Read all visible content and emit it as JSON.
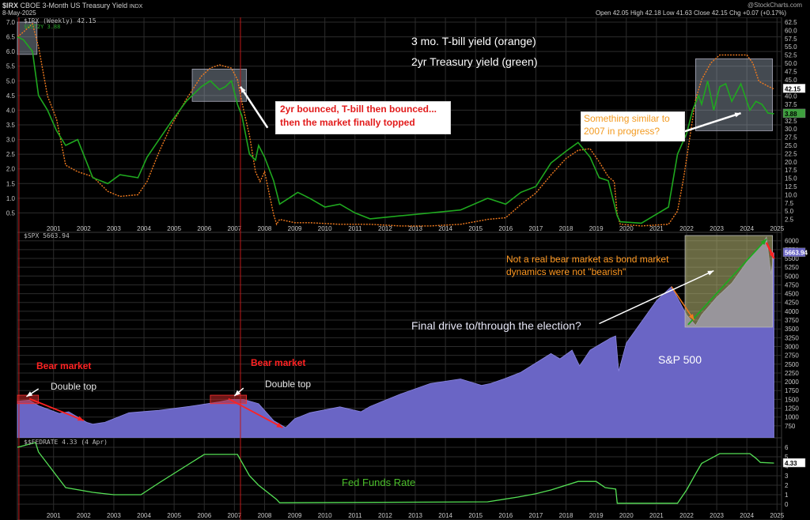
{
  "header": {
    "symbol": "$IRX",
    "title": "CBOE 3-Month US Treasury Yield",
    "exchange": "INDX",
    "date": "8-May-2025",
    "watermark": "@StockCharts.com",
    "ohlc": "Open 42.05  High 42.18  Low 41.63  Close 42.15  Chg +0.07 (+0.17%)"
  },
  "legends": {
    "top": "$IRX (Weekly) 42.15",
    "top2": "$UST2Y 3.88",
    "middle": "$SPX 5663.94",
    "bottom": "$$FEDRATE 4.33 (4 Apr)"
  },
  "annotations": {
    "tbill": "3 mo. T-bill yield (orange)",
    "twoyr": "2yr Treasury yield (green)",
    "bounce_1": "2yr bounced, T-bill then bounced...",
    "bounce_2": "then the market finally topped",
    "similar_1": "Something similar to",
    "similar_2": "2007 in progress?",
    "notbear_1": "Not a real bear market as bond market",
    "notbear_2": "dynamics were not \"bearish\"",
    "finaldrive": "Final drive to/through the election?",
    "sp500": "S&P 500",
    "bear1": "Bear market",
    "bear2": "Bear market",
    "dt1": "Double top",
    "dt2": "Double top",
    "fedfunds": "Fed Funds Rate"
  },
  "colors": {
    "orange": "#f07a1e",
    "green": "#1fa81f",
    "spx_fill": "#6a65c5",
    "fed_line": "#55e055",
    "red": "#ff2222",
    "ann_orange": "#ff9922",
    "ann_green": "#4cbf2c"
  },
  "chart_data": [
    {
      "type": "line",
      "title": "$IRX (Weekly)",
      "x_ticks": [
        "2001",
        "2002",
        "2003",
        "2004",
        "2005",
        "2006",
        "2007",
        "2008",
        "2009",
        "2010",
        "2011",
        "2012",
        "2013",
        "2014",
        "2015",
        "2016",
        "2017",
        "2018",
        "2019",
        "2020",
        "2021",
        "2022",
        "2023",
        "2024",
        "2025"
      ],
      "xlim": [
        2000.3,
        2025.65
      ],
      "left_axis_ticks": [
        "0.5",
        "1.0",
        "1.5",
        "2.0",
        "2.5",
        "3.0",
        "3.5",
        "4.0",
        "4.5",
        "5.0",
        "5.5",
        "6.0",
        "6.5",
        "7.0"
      ],
      "right_axis_ticks": [
        "2.5",
        "5.0",
        "7.5",
        "10.0",
        "12.5",
        "15.0",
        "17.5",
        "20.0",
        "22.5",
        "25.0",
        "27.5",
        "30.0",
        "32.5",
        "35.0",
        "37.5",
        "40.0",
        "42.5",
        "45.0",
        "47.5",
        "50.0",
        "52.5",
        "55.0",
        "57.5",
        "60.0",
        "62.5"
      ],
      "ylim_left": [
        0,
        7
      ],
      "ylim_right": [
        0,
        62.5
      ],
      "right_labels": [
        "42.15",
        "3.88"
      ],
      "series": [
        {
          "name": "$IRX",
          "unit_axis": "right",
          "x": [
            2000.3,
            2000.5,
            2000.8,
            2001.0,
            2001.3,
            2001.6,
            2001.9,
            2002.3,
            2002.8,
            2003.3,
            2003.7,
            2004.3,
            2004.6,
            2005.0,
            2005.4,
            2005.9,
            2006.4,
            2006.7,
            2007.0,
            2007.4,
            2007.6,
            2007.75,
            2007.9,
            2008.0,
            2008.2,
            2008.35,
            2008.5,
            2008.8,
            2008.9,
            2009.0,
            2009.5,
            2010.0,
            2011.0,
            2012.0,
            2013.0,
            2014.0,
            2015.0,
            2015.9,
            2016.5,
            2017.0,
            2017.5,
            2018.0,
            2018.5,
            2018.9,
            2019.3,
            2019.6,
            2019.9,
            2020.1,
            2020.2,
            2020.3,
            2021.0,
            2021.9,
            2022.2,
            2022.4,
            2022.6,
            2022.8,
            2023.0,
            2023.3,
            2023.6,
            2024.0,
            2024.5,
            2024.7,
            2024.9,
            2025.2,
            2025.4
          ],
          "y": [
            58.0,
            59.5,
            62.0,
            55.0,
            40.0,
            33.0,
            19.0,
            17.0,
            15.5,
            11.0,
            9.5,
            10.0,
            14.0,
            23.0,
            31.0,
            39.0,
            46.0,
            48.5,
            49.5,
            48.5,
            45.0,
            38.0,
            32.0,
            28.0,
            17.0,
            14.0,
            17.0,
            4.0,
            1.0,
            2.5,
            1.5,
            1.5,
            1.0,
            1.0,
            0.5,
            0.5,
            1.0,
            2.5,
            3.0,
            7.0,
            10.5,
            16.0,
            21.0,
            23.5,
            24.0,
            20.0,
            15.5,
            14.0,
            4.0,
            1.0,
            0.5,
            1.0,
            5.0,
            15.0,
            27.0,
            39.0,
            45.0,
            50.0,
            52.5,
            52.5,
            52.5,
            50.0,
            44.5,
            43.0,
            42.15
          ]
        },
        {
          "name": "$UST2Y",
          "unit_axis": "left",
          "x": [
            2000.3,
            2000.5,
            2000.8,
            2001.0,
            2001.3,
            2001.6,
            2001.9,
            2002.3,
            2002.8,
            2003.3,
            2003.7,
            2004.3,
            2004.6,
            2005.0,
            2005.4,
            2005.9,
            2006.4,
            2006.7,
            2007.0,
            2007.2,
            2007.4,
            2007.6,
            2007.75,
            2008.0,
            2008.2,
            2008.3,
            2008.5,
            2008.8,
            2009.0,
            2009.3,
            2009.6,
            2010.0,
            2010.5,
            2011.0,
            2011.5,
            2012.0,
            2013.0,
            2014.0,
            2015.0,
            2015.9,
            2016.5,
            2017.0,
            2017.5,
            2018.0,
            2018.5,
            2018.9,
            2019.3,
            2019.6,
            2019.9,
            2020.2,
            2020.3,
            2021.0,
            2021.9,
            2022.2,
            2022.5,
            2022.7,
            2022.9,
            2023.0,
            2023.2,
            2023.4,
            2023.6,
            2023.8,
            2024.0,
            2024.3,
            2024.6,
            2024.8,
            2025.0,
            2025.2,
            2025.4
          ],
          "y": [
            6.5,
            6.4,
            6.0,
            4.5,
            4.0,
            3.3,
            2.8,
            3.0,
            1.7,
            1.5,
            1.8,
            1.7,
            2.4,
            3.0,
            3.6,
            4.3,
            4.8,
            5.0,
            4.7,
            4.8,
            5.0,
            4.2,
            3.8,
            2.5,
            2.3,
            2.8,
            2.4,
            1.6,
            0.8,
            1.0,
            1.2,
            1.0,
            0.7,
            0.8,
            0.5,
            0.3,
            0.4,
            0.5,
            0.6,
            1.0,
            0.8,
            1.2,
            1.4,
            2.2,
            2.6,
            2.9,
            2.4,
            1.7,
            1.6,
            0.4,
            0.2,
            0.15,
            0.7,
            2.5,
            3.2,
            4.0,
            4.5,
            4.2,
            5.0,
            4.0,
            4.8,
            4.9,
            4.3,
            4.9,
            4.0,
            4.3,
            4.2,
            3.9,
            3.88
          ]
        }
      ]
    },
    {
      "type": "area",
      "title": "$SPX",
      "x_ticks": [
        "2001",
        "2002",
        "2003",
        "2004",
        "2005",
        "2006",
        "2007",
        "2008",
        "2009",
        "2010",
        "2011",
        "2012",
        "2013",
        "2014",
        "2015",
        "2016",
        "2017",
        "2018",
        "2019",
        "2020",
        "2021",
        "2022",
        "2023",
        "2024",
        "2025"
      ],
      "xlim": [
        2000.3,
        2025.65
      ],
      "y_ticks": [
        "750",
        "1000",
        "1250",
        "1500",
        "1750",
        "2000",
        "2250",
        "2500",
        "2750",
        "3000",
        "3250",
        "3500",
        "3750",
        "4000",
        "4250",
        "4500",
        "4750",
        "5000",
        "5250",
        "5500",
        "5750",
        "6000"
      ],
      "ylim": [
        500,
        6150
      ],
      "right_label": "5663.94",
      "series": [
        {
          "name": "$SPX",
          "x": [
            2000.3,
            2000.7,
            2001.0,
            2001.7,
            2002.0,
            2002.6,
            2002.8,
            2003.2,
            2004.0,
            2005.0,
            2006.0,
            2007.0,
            2007.4,
            2007.8,
            2008.3,
            2008.8,
            2009.2,
            2009.5,
            2010.0,
            2011.0,
            2011.7,
            2012.0,
            2013.0,
            2014.0,
            2015.0,
            2015.7,
            2016.0,
            2016.5,
            2017.0,
            2018.0,
            2018.3,
            2018.7,
            2018.95,
            2019.3,
            2020.0,
            2020.15,
            2020.25,
            2020.5,
            2021.0,
            2021.5,
            2022.0,
            2022.5,
            2022.8,
            2023.0,
            2023.5,
            2024.0,
            2024.5,
            2025.0,
            2025.15,
            2025.3,
            2025.4
          ],
          "y": [
            1450,
            1480,
            1320,
            1100,
            1150,
            850,
            800,
            850,
            1120,
            1190,
            1300,
            1430,
            1500,
            1500,
            1380,
            900,
            700,
            950,
            1120,
            1290,
            1150,
            1300,
            1650,
            1950,
            2080,
            1900,
            1950,
            2100,
            2270,
            2800,
            2650,
            2900,
            2450,
            2900,
            3250,
            3300,
            2300,
            3100,
            3700,
            4300,
            4700,
            3900,
            3600,
            3900,
            4400,
            4800,
            5400,
            5900,
            6100,
            5050,
            5663.94
          ]
        }
      ]
    },
    {
      "type": "line",
      "title": "$$FEDRATE",
      "x_ticks": [
        "2001",
        "2002",
        "2003",
        "2004",
        "2005",
        "2006",
        "2007",
        "2008",
        "2009",
        "2010",
        "2011",
        "2012",
        "2013",
        "2014",
        "2015",
        "2016",
        "2017",
        "2018",
        "2019",
        "2020",
        "2021",
        "2022",
        "2023",
        "2024",
        "2025"
      ],
      "xlim": [
        2000.3,
        2025.65
      ],
      "y_ticks": [
        "0",
        "1",
        "2",
        "3",
        "4",
        "5",
        "6"
      ],
      "ylim": [
        -0.5,
        6.5
      ],
      "right_label": "4.33",
      "series": [
        {
          "name": "$$FEDRATE",
          "x": [
            2000.3,
            2000.9,
            2001.0,
            2001.9,
            2002.8,
            2003.5,
            2004.4,
            2005.0,
            2006.0,
            2006.5,
            2007.6,
            2008.0,
            2008.3,
            2008.9,
            2009.0,
            2015.9,
            2016.9,
            2017.5,
            2018.0,
            2018.9,
            2019.5,
            2019.8,
            2020.15,
            2020.2,
            2022.2,
            2022.5,
            2022.8,
            2023.0,
            2023.6,
            2024.6,
            2024.8,
            2024.95,
            2025.4
          ],
          "y": [
            6.0,
            6.5,
            5.5,
            1.75,
            1.25,
            1.0,
            1.0,
            2.25,
            4.25,
            5.25,
            5.25,
            3.0,
            2.0,
            0.5,
            0.15,
            0.25,
            0.75,
            1.1,
            1.5,
            2.4,
            2.4,
            1.75,
            1.6,
            0.1,
            0.1,
            1.5,
            3.2,
            4.3,
            5.33,
            5.33,
            4.85,
            4.4,
            4.33
          ]
        }
      ]
    }
  ]
}
